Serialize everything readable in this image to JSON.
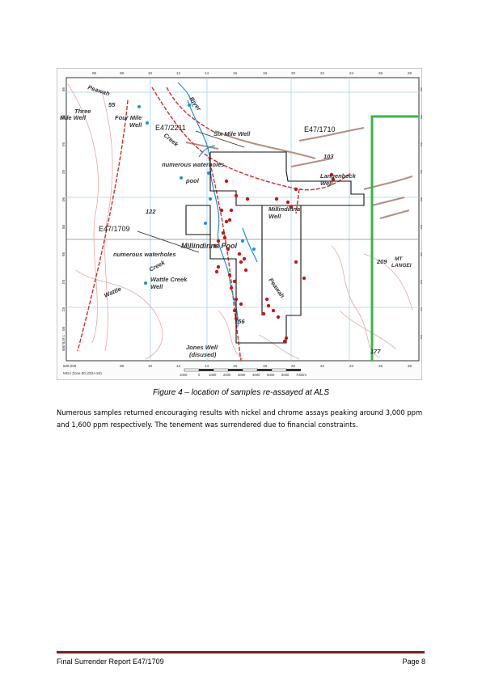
{
  "figure": {
    "top_ticks": [
      "06",
      "08",
      "10",
      "12",
      "14",
      "16",
      "18",
      "20",
      "22",
      "24",
      "26",
      "28"
    ],
    "bottom_ticks": [
      "606,000",
      "08",
      "10",
      "12",
      "14",
      "16",
      "18",
      "20",
      "22",
      "24",
      "26",
      "28"
    ],
    "left_ticks": [
      "98",
      "96",
      "94",
      "92",
      "90",
      "88",
      "86",
      "84",
      "82",
      "80",
      "7,678,000"
    ],
    "right_ticks": [
      "98",
      "96",
      "94",
      "92",
      "90",
      "88",
      "86",
      "84",
      "82",
      "80"
    ],
    "labels": {
      "peawah_north": "Peawah",
      "fifty_five": "55",
      "three_mile_well": "Three\nMile Well",
      "four_mile_well": "Four Mile\nWell",
      "river": "River",
      "creek_north": "Creek",
      "six_mile_well": "Six Mile Well",
      "e47_2211": "E47/2211",
      "e47_1710": "E47/1710",
      "one_o_three": "103",
      "numerous_waterholes_north": "numerous  waterholes",
      "pool": "pool",
      "langenbeck_well": "Langenbeck\nWell",
      "one_two_two": "122",
      "millindinna_well": "Millindinna\nWell",
      "e47_1709": "E47/1709",
      "millindinna_pool": "Millindinna Pool",
      "numerous_waterholes_south": "numerous  waterholes",
      "creek_south": "Creek",
      "wattle_creek_well": "Wattle Creek\nWell",
      "wattle": "Wattle",
      "peawah_south": "Peawah",
      "two_o_nine": "209",
      "mt_langen": "MT\nLANGEI",
      "one_five_six": "156",
      "jones_well": "Jones Well\n(disused)",
      "one_seven_seven": "177",
      "mga_zone": "MGA Zone 50 (GDA 94)",
      "scale_ticks": [
        "1000",
        "0",
        "1000",
        "2000",
        "3000",
        "4000",
        "5000",
        "6000",
        "7000m"
      ]
    }
  },
  "caption": "Figure 4 – location of samples re-assayed at ALS",
  "paragraph": "Numerous samples returned encouraging results with nickel and chrome assays peaking around 3,000 ppm and 1,600 ppm respectively. The tenement was surrendered due to financial constraints.",
  "footer": {
    "left": "Final Surrender Report E47/1709",
    "right": "Page 8"
  }
}
